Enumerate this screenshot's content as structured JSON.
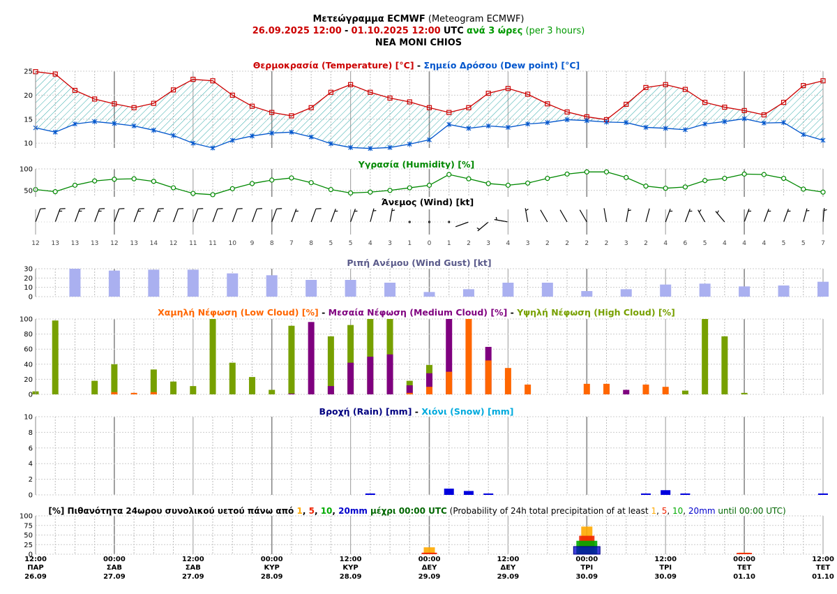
{
  "header": {
    "title_main": "Μετεώγραμμα ECMWF",
    "title_en": "(Meteogram ECMWF)",
    "date_from": "26.09.2025 12:00",
    "date_sep": "-",
    "date_to": "01.10.2025 12:00",
    "utc": "UTC",
    "step_gr": "ανά 3 ώρες",
    "step_en": "(per 3 hours)",
    "location": "NEA MONI CHIOS"
  },
  "colors": {
    "temperature": "#cc0000",
    "dewpoint": "#0055cc",
    "humidity": "#008800",
    "gust": "#aab0f0",
    "low_cloud": "#ff6600",
    "medium_cloud": "#7f007f",
    "high_cloud": "#77a000",
    "rain": "#0000dd",
    "snow": "#00aadd",
    "prob1": "#ffaa00",
    "prob5": "#ee2200",
    "prob10": "#00aa00",
    "prob20": "#0000cc"
  },
  "titles": {
    "temperature": {
      "a": "Θερμοκρασία (Temperature) [°C]",
      "sep": " - ",
      "b": "Σημείο Δρόσου (Dew point) [°C]"
    },
    "humidity": "Υγρασία (Humidity) [%]",
    "wind": "Άνεμος (Wind) [kt]",
    "gust": "Ριπή Ανέμου (Wind Gust) [kt]",
    "cloud": {
      "a": "Χαμηλή Νέφωση (Low Cloud) [%]",
      "sep": " - ",
      "b": "Μεσαία Νέφωση (Medium Cloud) [%]",
      "c": "Υψηλή Νέφωση (High Cloud) [%]"
    },
    "rain": {
      "a": "Βροχή (Rain) [mm]",
      "sep": " - ",
      "b": "Χιόνι (Snow) [mm]"
    },
    "prob": {
      "p1": "[%] Πιθανότητα 24ωρου συνολικού υετού πάνω από ",
      "t1": "1",
      "c1": ", ",
      "t5": "5",
      "c2": ", ",
      "t10": "10",
      "c3": ", ",
      "t20": "20mm",
      "p2": " μέχρι 00:00 UTC",
      "p3": " (Probability of 24h total precipitation of at least ",
      "u1": "1",
      "d1": ", ",
      "u5": "5",
      "d2": ", ",
      "u10": "10",
      "d3": ", ",
      "u20": "20mm",
      "p4": " until 00:00 UTC)"
    }
  },
  "x_axis": {
    "ticks": [
      {
        "time": "12:00",
        "day": "ΠΑΡ",
        "date": "26.09"
      },
      {
        "time": "00:00",
        "day": "ΣΑΒ",
        "date": "27.09"
      },
      {
        "time": "12:00",
        "day": "ΣΑΒ",
        "date": "27.09"
      },
      {
        "time": "00:00",
        "day": "ΚΥΡ",
        "date": "28.09"
      },
      {
        "time": "12:00",
        "day": "ΚΥΡ",
        "date": "28.09"
      },
      {
        "time": "00:00",
        "day": "ΔΕΥ",
        "date": "29.09"
      },
      {
        "time": "12:00",
        "day": "ΔΕΥ",
        "date": "29.09"
      },
      {
        "time": "00:00",
        "day": "ΤΡΙ",
        "date": "30.09"
      },
      {
        "time": "12:00",
        "day": "ΤΡΙ",
        "date": "30.09"
      },
      {
        "time": "00:00",
        "day": "ΤΕΤ",
        "date": "01.10"
      },
      {
        "time": "12:00",
        "day": "ΤΕΤ",
        "date": "01.10"
      }
    ]
  },
  "chart_data": [
    {
      "type": "line",
      "panel": "temperature",
      "step_hours": 3,
      "ylim": [
        9,
        25
      ],
      "yticks": [
        10,
        15,
        20,
        25
      ],
      "series": [
        {
          "name": "Θερμοκρασία (Temperature) [°C]",
          "values": [
            24.9,
            24.4,
            21.0,
            19.2,
            18.2,
            17.4,
            18.3,
            21.1,
            23.3,
            23.0,
            20.0,
            17.7,
            16.4,
            15.7,
            17.4,
            20.6,
            22.2,
            20.6,
            19.4,
            18.6,
            17.4,
            16.4,
            17.4,
            20.4,
            21.4,
            20.2,
            18.2,
            16.5,
            15.5,
            14.9,
            18.1,
            21.6,
            22.2,
            21.2,
            18.5,
            17.5,
            16.8,
            15.9,
            18.5,
            22.0,
            23.0
          ]
        },
        {
          "name": "Σημείο Δρόσου (Dew point) [°C]",
          "values": [
            13.2,
            12.3,
            14.0,
            14.5,
            14.1,
            13.6,
            12.7,
            11.6,
            10.0,
            9.0,
            10.6,
            11.5,
            12.1,
            12.3,
            11.3,
            9.9,
            9.1,
            8.9,
            9.1,
            9.8,
            10.7,
            13.9,
            13.1,
            13.6,
            13.3,
            14.0,
            14.3,
            14.9,
            14.7,
            14.4,
            14.3,
            13.3,
            13.1,
            12.8,
            14.0,
            14.5,
            15.1,
            14.2,
            14.3,
            11.8,
            10.6
          ]
        }
      ]
    },
    {
      "type": "line",
      "panel": "humidity",
      "ylim": [
        35,
        100
      ],
      "yticks": [
        50,
        100
      ],
      "series": [
        {
          "name": "Υγρασία (Humidity) [%]",
          "values": [
            52,
            47,
            62,
            72,
            76,
            77,
            71,
            56,
            43,
            40,
            54,
            66,
            74,
            79,
            68,
            52,
            44,
            46,
            50,
            56,
            62,
            87,
            77,
            66,
            62,
            67,
            78,
            88,
            93,
            93,
            80,
            60,
            55,
            58,
            73,
            78,
            88,
            87,
            78,
            53,
            46
          ]
        }
      ]
    },
    {
      "type": "wind",
      "panel": "wind",
      "unit": "kt",
      "speed": [
        12,
        13,
        13,
        13,
        12,
        13,
        14,
        12,
        11,
        11,
        10,
        9,
        8,
        7,
        8,
        5,
        5,
        4,
        3,
        1,
        0,
        1,
        2,
        3,
        4,
        3,
        2,
        2,
        2,
        2,
        3,
        2,
        4,
        6,
        5,
        4,
        4,
        4,
        5,
        5,
        7
      ],
      "direction_deg": [
        20,
        20,
        20,
        20,
        20,
        20,
        20,
        20,
        20,
        20,
        20,
        20,
        20,
        20,
        20,
        20,
        20,
        15,
        10,
        0,
        0,
        200,
        250,
        230,
        280,
        350,
        330,
        330,
        330,
        350,
        10,
        15,
        20,
        20,
        330,
        320,
        20,
        20,
        20,
        15,
        5
      ]
    },
    {
      "type": "bar",
      "panel": "gust",
      "ylim": [
        0,
        30
      ],
      "yticks": [
        0,
        10,
        20,
        30
      ],
      "step_hours": 6,
      "series": [
        {
          "name": "Ριπή Ανέμου (Wind Gust) [kt]",
          "values": [
            30,
            28,
            29,
            29,
            25,
            23,
            18,
            18,
            15,
            5,
            8,
            15,
            15,
            6,
            8,
            13,
            14,
            11,
            12,
            16
          ]
        }
      ]
    },
    {
      "type": "bar",
      "panel": "cloud",
      "ylim": [
        0,
        100
      ],
      "yticks": [
        0,
        20,
        40,
        60,
        80,
        100
      ],
      "series": [
        {
          "name": "Χαμηλή Νέφωση (Low Cloud) [%]",
          "values": [
            0,
            0,
            0,
            0,
            3,
            2,
            3,
            0,
            0,
            0,
            0,
            0,
            0,
            0,
            0,
            0,
            0,
            0,
            0,
            2,
            10,
            30,
            100,
            45,
            35,
            13,
            0,
            0,
            14,
            14,
            0,
            13,
            10,
            0,
            0,
            0,
            0,
            0,
            0,
            0,
            0
          ]
        },
        {
          "name": "Μεσαία Νέφωση (Medium Cloud) [%]",
          "values": [
            0,
            0,
            0,
            0,
            0,
            0,
            0,
            0,
            0,
            0,
            0,
            0,
            0,
            1,
            96,
            11,
            42,
            50,
            53,
            12,
            28,
            100,
            0,
            63,
            0,
            0,
            0,
            0,
            0,
            0,
            6,
            0,
            0,
            0,
            0,
            0,
            0,
            0,
            0,
            0,
            0
          ]
        },
        {
          "name": "Υψηλή Νέφωση (High Cloud) [%]",
          "values": [
            4,
            98,
            0,
            18,
            40,
            0,
            33,
            17,
            11,
            100,
            42,
            23,
            6,
            91,
            0,
            77,
            92,
            100,
            100,
            18,
            39,
            0,
            0,
            0,
            0,
            0,
            0,
            0,
            0,
            0,
            0,
            0,
            0,
            5,
            100,
            77,
            2,
            0,
            0,
            0,
            0
          ]
        }
      ]
    },
    {
      "type": "bar",
      "panel": "rain",
      "ylim": [
        0,
        10
      ],
      "yticks": [
        0,
        2,
        4,
        6,
        8,
        10
      ],
      "series": [
        {
          "name": "Βροχή (Rain) [mm]",
          "values": [
            0,
            0,
            0,
            0,
            0,
            0,
            0,
            0,
            0,
            0,
            0,
            0,
            0,
            0,
            0,
            0,
            0,
            0.1,
            0,
            0,
            0,
            0.8,
            0.5,
            0.1,
            0,
            0,
            0,
            0,
            0,
            0,
            0,
            0.1,
            0.6,
            0.1,
            0,
            0,
            0,
            0,
            0,
            0,
            0.1
          ]
        },
        {
          "name": "Χιόνι (Snow) [mm]",
          "values": [
            0,
            0,
            0,
            0,
            0,
            0,
            0,
            0,
            0,
            0,
            0,
            0,
            0,
            0,
            0,
            0,
            0,
            0,
            0,
            0,
            0,
            0,
            0,
            0,
            0,
            0,
            0,
            0,
            0,
            0,
            0,
            0,
            0,
            0,
            0,
            0,
            0,
            0,
            0,
            0,
            0
          ]
        }
      ]
    },
    {
      "type": "bar",
      "panel": "probability",
      "ylim": [
        0,
        100
      ],
      "yticks": [
        0,
        25,
        50,
        75,
        100
      ],
      "categories": [
        "29.09 00:00",
        "30.09 00:00",
        "01.10 00:00"
      ],
      "series": [
        {
          "name": "1",
          "values": [
            18,
            72,
            4
          ]
        },
        {
          "name": "5",
          "values": [
            4,
            48,
            2
          ]
        },
        {
          "name": "10",
          "values": [
            0,
            35,
            0
          ]
        },
        {
          "name": "20mm",
          "values": [
            0,
            20,
            0
          ]
        }
      ]
    }
  ]
}
